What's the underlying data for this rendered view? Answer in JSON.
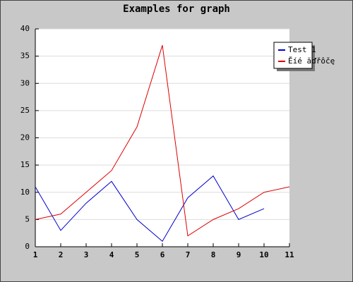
{
  "chart_data": {
    "type": "line",
    "title": "Examples for graph",
    "x": [
      1,
      2,
      3,
      4,
      5,
      6,
      7,
      8,
      9,
      10,
      11
    ],
    "series": [
      {
        "name": "Test 1",
        "color": "#0000cc",
        "values": [
          11,
          3,
          8,
          12,
          5,
          1,
          9,
          13,
          5,
          7,
          null
        ]
      },
      {
        "name": "Ěíé ăďřôčę",
        "color": "#dd0000",
        "values": [
          5,
          6,
          10,
          14,
          22,
          37,
          2,
          5,
          7,
          10,
          11
        ]
      }
    ],
    "xlim": [
      1,
      11
    ],
    "xticks": [
      1,
      2,
      3,
      4,
      5,
      6,
      7,
      8,
      9,
      10,
      11
    ],
    "ylim": [
      0,
      40
    ],
    "yticks": [
      0,
      5,
      10,
      15,
      20,
      25,
      30,
      35,
      40
    ],
    "grid": true,
    "legend": "top-right"
  }
}
